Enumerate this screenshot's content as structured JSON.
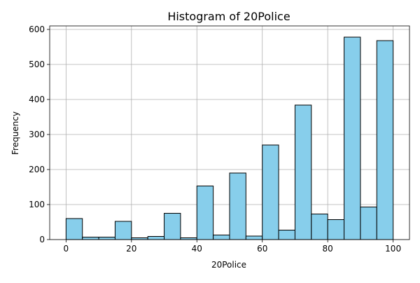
{
  "chart_data": {
    "type": "bar",
    "subtype": "histogram",
    "title": "Histogram of 20Police",
    "xlabel": "20Police",
    "ylabel": "Frequency",
    "xlim": [
      -5,
      105
    ],
    "ylim": [
      0,
      610
    ],
    "xticks": [
      0,
      20,
      40,
      60,
      80,
      100
    ],
    "yticks": [
      0,
      100,
      200,
      300,
      400,
      500,
      600
    ],
    "grid": true,
    "bar_color": "#87CEEB",
    "edge_color": "#000000",
    "bins": [
      {
        "start": 0,
        "end": 5,
        "count": 60
      },
      {
        "start": 5,
        "end": 10,
        "count": 7
      },
      {
        "start": 10,
        "end": 15,
        "count": 7
      },
      {
        "start": 15,
        "end": 20,
        "count": 52
      },
      {
        "start": 20,
        "end": 25,
        "count": 5
      },
      {
        "start": 25,
        "end": 30,
        "count": 9
      },
      {
        "start": 30,
        "end": 35,
        "count": 75
      },
      {
        "start": 35,
        "end": 40,
        "count": 5
      },
      {
        "start": 40,
        "end": 45,
        "count": 153
      },
      {
        "start": 45,
        "end": 50,
        "count": 13
      },
      {
        "start": 50,
        "end": 55,
        "count": 190
      },
      {
        "start": 55,
        "end": 60,
        "count": 10
      },
      {
        "start": 60,
        "end": 65,
        "count": 270
      },
      {
        "start": 65,
        "end": 70,
        "count": 27
      },
      {
        "start": 70,
        "end": 75,
        "count": 384
      },
      {
        "start": 75,
        "end": 80,
        "count": 73
      },
      {
        "start": 80,
        "end": 85,
        "count": 57
      },
      {
        "start": 85,
        "end": 90,
        "count": 578
      },
      {
        "start": 90,
        "end": 95,
        "count": 93
      },
      {
        "start": 95,
        "end": 100,
        "count": 568
      }
    ]
  }
}
